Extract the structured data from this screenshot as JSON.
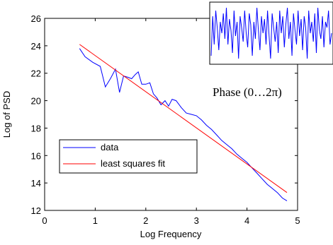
{
  "chart_data": [
    {
      "type": "line",
      "xlabel": "Log Frequency",
      "ylabel": "Log of PSD",
      "xlim": [
        0,
        5
      ],
      "ylim": [
        12,
        26
      ],
      "x_ticks": [
        "0",
        "1",
        "2",
        "3",
        "4",
        "5"
      ],
      "y_ticks": [
        "12",
        "14",
        "16",
        "18",
        "20",
        "22",
        "24",
        "26"
      ],
      "grid": false,
      "legend_position": "center-left",
      "annotation": "Phase (0…2π)",
      "series": [
        {
          "name": "data",
          "color": "#0000ff",
          "x": [
            0.69,
            0.8,
            0.95,
            1.1,
            1.2,
            1.3,
            1.4,
            1.48,
            1.56,
            1.65,
            1.72,
            1.79,
            1.85,
            1.92,
            2.0,
            2.08,
            2.15,
            2.22,
            2.3,
            2.38,
            2.45,
            2.52,
            2.6,
            2.7,
            2.8,
            2.9,
            3.0,
            3.1,
            3.2,
            3.3,
            3.4,
            3.5,
            3.6,
            3.7,
            3.8,
            3.9,
            4.0,
            4.1,
            4.2,
            4.3,
            4.4,
            4.5,
            4.6,
            4.7,
            4.79
          ],
          "y": [
            23.8,
            23.2,
            22.8,
            22.5,
            21.0,
            21.6,
            22.3,
            20.6,
            21.8,
            21.7,
            21.6,
            21.9,
            22.1,
            21.2,
            21.2,
            21.3,
            20.5,
            20.2,
            19.7,
            20.0,
            19.6,
            20.1,
            20.0,
            19.5,
            19.1,
            19.0,
            18.9,
            18.6,
            18.2,
            17.9,
            17.5,
            17.1,
            16.8,
            16.5,
            16.1,
            15.8,
            15.5,
            15.1,
            14.7,
            14.3,
            13.9,
            13.6,
            13.3,
            12.9,
            12.7
          ]
        },
        {
          "name": "least squares fit",
          "color": "#ff0000",
          "x": [
            0.69,
            4.79
          ],
          "y": [
            24.1,
            13.3
          ]
        }
      ]
    },
    {
      "type": "line",
      "title": "",
      "series": [
        {
          "color": "#0000ff",
          "values": [
            0.1,
            0.8,
            0.3,
            0.9,
            0.6,
            0.2,
            0.7,
            0.5,
            0.85,
            0.4,
            0.95,
            0.3,
            0.75,
            0.55,
            0.15,
            0.9,
            0.45,
            0.7,
            0.05,
            0.8,
            0.6,
            0.35,
            0.9,
            0.5,
            0.25,
            0.85,
            0.65,
            0.1,
            0.7,
            0.4,
            0.95,
            0.55,
            0.2,
            0.8,
            0.5,
            0.75,
            0.3,
            0.9,
            0.45,
            0.05,
            0.85,
            0.6,
            0.35,
            0.7,
            0.15,
            0.9,
            0.5,
            0.8,
            0.25,
            0.65,
            0.95,
            0.4,
            0.7,
            0.1,
            0.85,
            0.55,
            0.3,
            0.9,
            0.45,
            0.75,
            0.2,
            0.8,
            0.6,
            0.05,
            0.9,
            0.5,
            0.7,
            0.35,
            0.85,
            0.15,
            0.95,
            0.55,
            0.4,
            0.8,
            0.25,
            0.7,
            0.6,
            0.9,
            0.3,
            0.5
          ]
        }
      ]
    }
  ]
}
